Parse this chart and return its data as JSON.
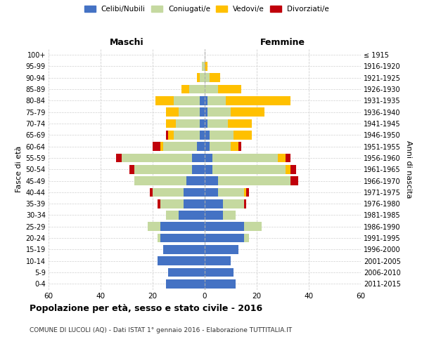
{
  "age_groups": [
    "0-4",
    "5-9",
    "10-14",
    "15-19",
    "20-24",
    "25-29",
    "30-34",
    "35-39",
    "40-44",
    "45-49",
    "50-54",
    "55-59",
    "60-64",
    "65-69",
    "70-74",
    "75-79",
    "80-84",
    "85-89",
    "90-94",
    "95-99",
    "100+"
  ],
  "birth_years": [
    "2011-2015",
    "2006-2010",
    "2001-2005",
    "1996-2000",
    "1991-1995",
    "1986-1990",
    "1981-1985",
    "1976-1980",
    "1971-1975",
    "1966-1970",
    "1961-1965",
    "1956-1960",
    "1951-1955",
    "1946-1950",
    "1941-1945",
    "1936-1940",
    "1931-1935",
    "1926-1930",
    "1921-1925",
    "1916-1920",
    "≤ 1915"
  ],
  "male_celibi": [
    15,
    14,
    18,
    16,
    17,
    17,
    10,
    8,
    8,
    7,
    5,
    5,
    3,
    2,
    2,
    2,
    2,
    0,
    0,
    0,
    0
  ],
  "male_coniugati": [
    0,
    0,
    0,
    0,
    1,
    5,
    5,
    9,
    12,
    20,
    22,
    27,
    13,
    10,
    9,
    8,
    10,
    6,
    2,
    1,
    0
  ],
  "male_vedovi": [
    0,
    0,
    0,
    0,
    0,
    0,
    0,
    0,
    0,
    0,
    0,
    0,
    1,
    2,
    4,
    5,
    7,
    3,
    1,
    0,
    0
  ],
  "male_divorziati": [
    0,
    0,
    0,
    0,
    0,
    0,
    0,
    1,
    1,
    0,
    2,
    2,
    3,
    1,
    0,
    0,
    0,
    0,
    0,
    0,
    0
  ],
  "female_celibi": [
    12,
    11,
    10,
    13,
    15,
    15,
    7,
    7,
    5,
    5,
    3,
    3,
    2,
    2,
    1,
    1,
    1,
    0,
    0,
    0,
    0
  ],
  "female_coniugati": [
    0,
    0,
    0,
    0,
    2,
    7,
    5,
    8,
    10,
    28,
    28,
    25,
    8,
    9,
    8,
    9,
    7,
    5,
    2,
    0,
    0
  ],
  "female_vedovi": [
    0,
    0,
    0,
    0,
    0,
    0,
    0,
    0,
    1,
    0,
    2,
    3,
    3,
    7,
    9,
    13,
    25,
    9,
    4,
    1,
    0
  ],
  "female_divorziati": [
    0,
    0,
    0,
    0,
    0,
    0,
    0,
    1,
    1,
    3,
    2,
    2,
    1,
    0,
    0,
    0,
    0,
    0,
    0,
    0,
    0
  ],
  "color_celibi": "#4472c4",
  "color_coniugati": "#c5d9a0",
  "color_vedovi": "#ffc000",
  "color_divorziati": "#c0000b",
  "title": "Popolazione per età, sesso e stato civile - 2016",
  "subtitle": "COMUNE DI LUCOLI (AQ) - Dati ISTAT 1° gennaio 2016 - Elaborazione TUTTITALIA.IT",
  "xlabel_left": "Maschi",
  "xlabel_right": "Femmine",
  "ylabel_left": "Fasce di età",
  "ylabel_right": "Anni di nascita",
  "xlim": 60,
  "background_color": "#ffffff",
  "grid_color": "#d0d0d0"
}
